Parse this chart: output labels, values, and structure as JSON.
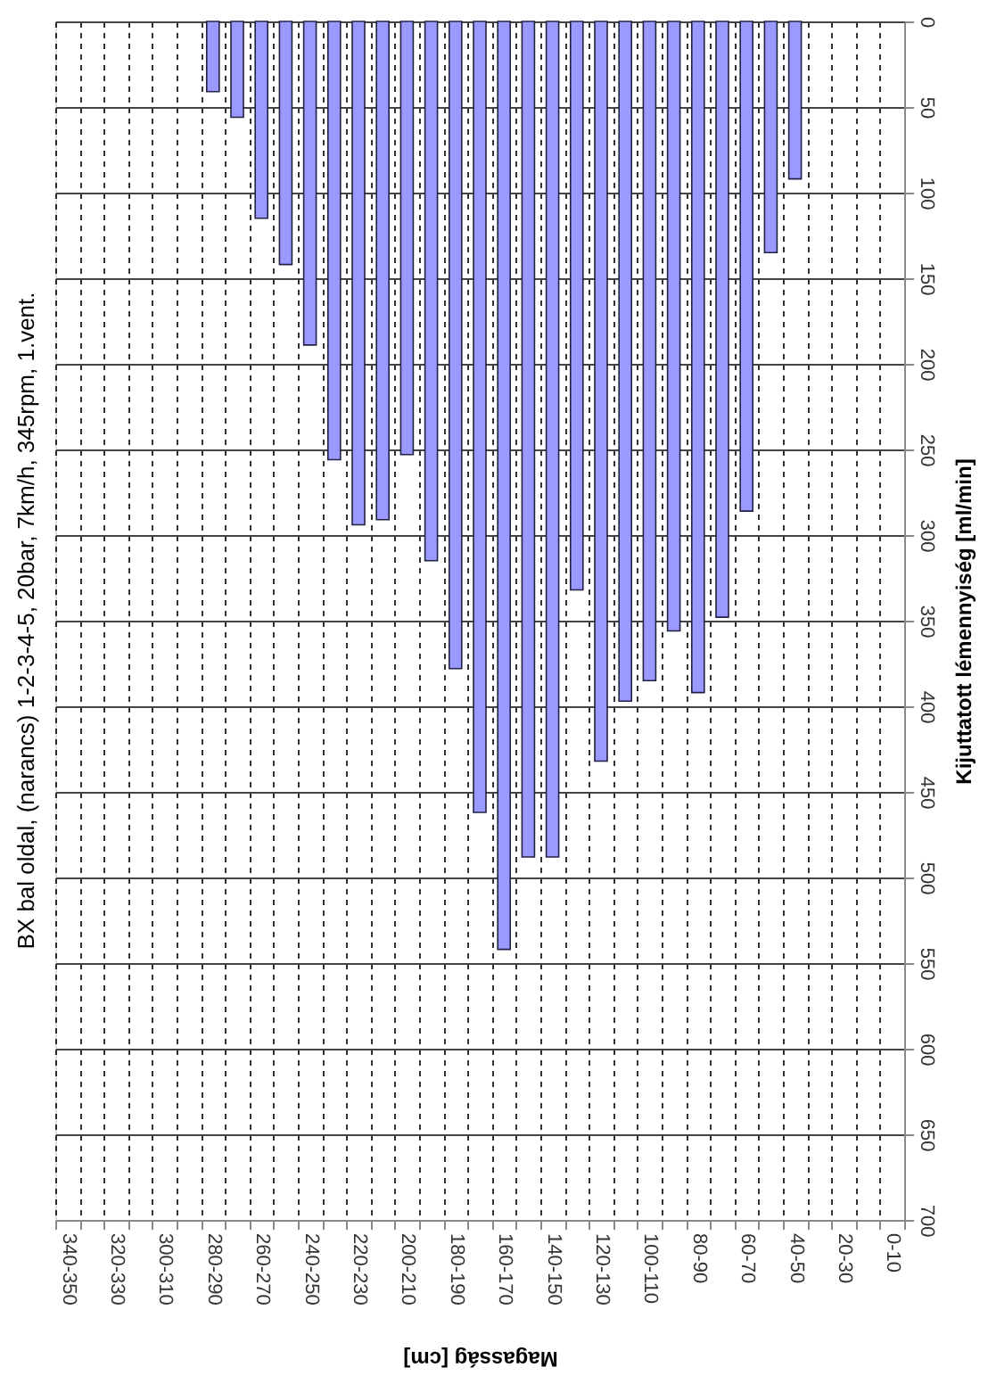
{
  "chart_data": {
    "type": "bar",
    "title": "BX bal oldal, (narancs) 1-2-3-4-5, 20bar, 7km/h, 345rpm, 1.vent.",
    "xlabel": "Magasság [cm]",
    "ylabel": "Kijuttatott lémennyiség [ml/min]",
    "categories": [
      "340-350",
      null,
      "320-330",
      null,
      "300-310",
      null,
      "280-290",
      null,
      "260-270",
      null,
      "240-250",
      null,
      "220-230",
      null,
      "200-210",
      null,
      "180-190",
      null,
      "160-170",
      null,
      "140-150",
      null,
      "120-130",
      null,
      "100-110",
      null,
      "80-90",
      null,
      "60-70",
      null,
      "40-50",
      null,
      "20-30",
      null,
      "0-10"
    ],
    "values": [
      0,
      0,
      0,
      0,
      0,
      0,
      41,
      56,
      115,
      142,
      189,
      256,
      294,
      291,
      253,
      315,
      378,
      462,
      542,
      488,
      488,
      332,
      432,
      397,
      385,
      356,
      392,
      348,
      286,
      135,
      92,
      0,
      0,
      0,
      0
    ],
    "color": "#9999ff",
    "ylim": [
      700,
      0
    ],
    "yticks": [
      0,
      50,
      100,
      150,
      200,
      250,
      300,
      350,
      400,
      450,
      500,
      550,
      600,
      650,
      700
    ],
    "grid": true
  }
}
